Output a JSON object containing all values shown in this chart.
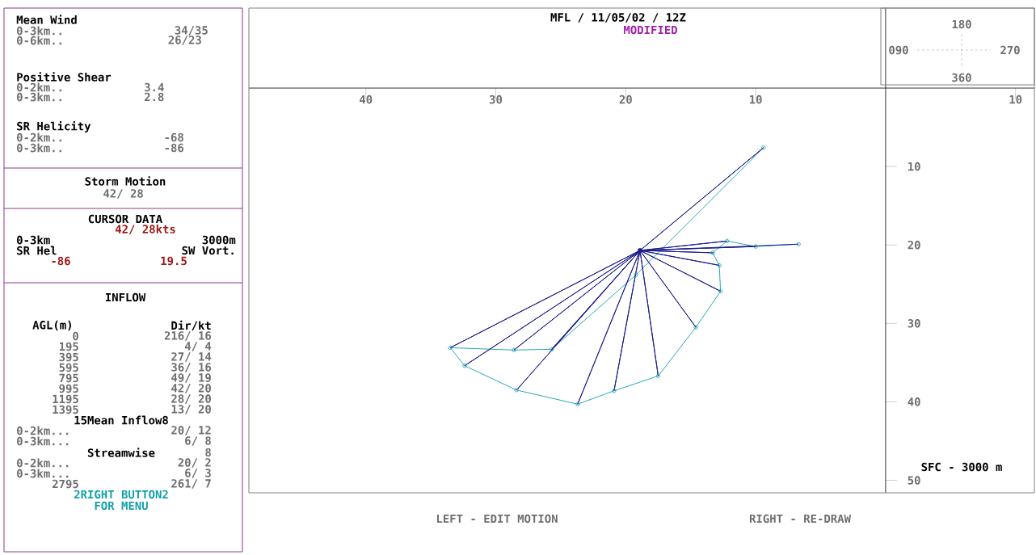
{
  "chart_data": {
    "type": "line",
    "title": "MFL / 11/05/02 /  12Z",
    "subtitle": "MODIFIED",
    "xlim": [
      -49.0,
      11.45
    ],
    "ylim": [
      51.6,
      -10.2
    ],
    "xticks": [
      {
        "value": -40,
        "label": "40"
      },
      {
        "value": -30,
        "label": "30"
      },
      {
        "value": -20,
        "label": "20"
      },
      {
        "value": -10,
        "label": "10"
      },
      10
    ],
    "yticks": [
      10,
      20,
      30,
      40,
      50
    ],
    "series": [
      {
        "color": "#2aa8b0",
        "marker": "circle",
        "line_style": "solid",
        "x": [
          -9.4,
          -19.2,
          -25.7,
          -28.6,
          -33.5,
          -32.4,
          -28.4,
          -23.7,
          -20.9,
          -17.5,
          -14.6,
          -12.7,
          -12.8,
          -13.3,
          -12.2,
          -10.0,
          -6.7
        ],
        "values": [
          7.6,
          23.8,
          33.3,
          33.4,
          33.1,
          35.4,
          38.5,
          40.3,
          38.6,
          36.7,
          30.5,
          25.9,
          22.6,
          21.0,
          19.5,
          20.2,
          19.9
        ]
      },
      {
        "color": "#1c1c8c",
        "line_style": "solid",
        "x": [
          -18.9,
          -9.4,
          -18.9,
          -25.7,
          -18.9,
          -28.6,
          -18.9,
          -33.5,
          -18.9,
          -32.4,
          -18.9,
          -28.4,
          -18.9,
          -23.7,
          -18.9,
          -20.9,
          -18.9,
          -17.5,
          -18.9,
          -14.6,
          -18.9,
          -12.7,
          -18.9,
          -12.8,
          -18.9,
          -13.3,
          -18.9,
          -12.2,
          -18.9,
          -10.0,
          -18.9,
          -6.7
        ],
        "values": [
          20.7,
          7.6,
          20.7,
          33.3,
          20.7,
          33.4,
          20.7,
          33.1,
          20.7,
          35.4,
          20.7,
          38.5,
          20.7,
          40.3,
          20.7,
          38.6,
          20.7,
          36.7,
          20.7,
          30.5,
          20.7,
          25.9,
          20.7,
          22.6,
          20.7,
          21.0,
          20.7,
          19.5,
          20.7,
          20.2,
          20.7,
          19.9
        ]
      },
      {
        "type": "scatter",
        "color": "#1c1c8c",
        "marker": "circle",
        "x": [
          -18.9
        ],
        "values": [
          20.7
        ]
      }
    ],
    "annotations": [
      "Mean Wind",
      "0-3km..",
      "34/35",
      "0-6km..",
      "26/23",
      "Positive Shear",
      "0-2km..",
      "3.4",
      "0-3km..",
      "2.8",
      "SR Helicity",
      "0-2km..",
      "-68",
      "0-3km..",
      "-86",
      "Storm Motion",
      "42/ 28",
      "CURSOR DATA",
      "42/ 28kts",
      "0-3km",
      "3000m",
      "SR Hel",
      "SW Vort.",
      "-86",
      "19.5",
      "INFLOW",
      "AGL(m)",
      "Dir/kt",
      "0",
      "216/ 16",
      "195",
      "4/ 4",
      "395",
      "27/ 14",
      "595",
      "36/ 16",
      "795",
      "49/ 19",
      "995",
      "42/ 20",
      "1195",
      "28/ 20",
      "1395",
      "13/ 20",
      "15Mean Inflow8",
      "0-2km...",
      "20/ 12",
      "0-3km...",
      "6/ 8",
      "Streamwise",
      "8",
      "0-2km...",
      "20/ 2",
      "0-3km...",
      "6/ 3",
      "2795",
      "261/ 7",
      "2RIGHT BUTTON2",
      "FOR MENU",
      "SFC - 3000 m",
      "**LEFT** - EDIT MOTION",
      "**RIGHT** - RE-DRAW",
      "180",
      "090",
      "270",
      "360"
    ]
  }
}
